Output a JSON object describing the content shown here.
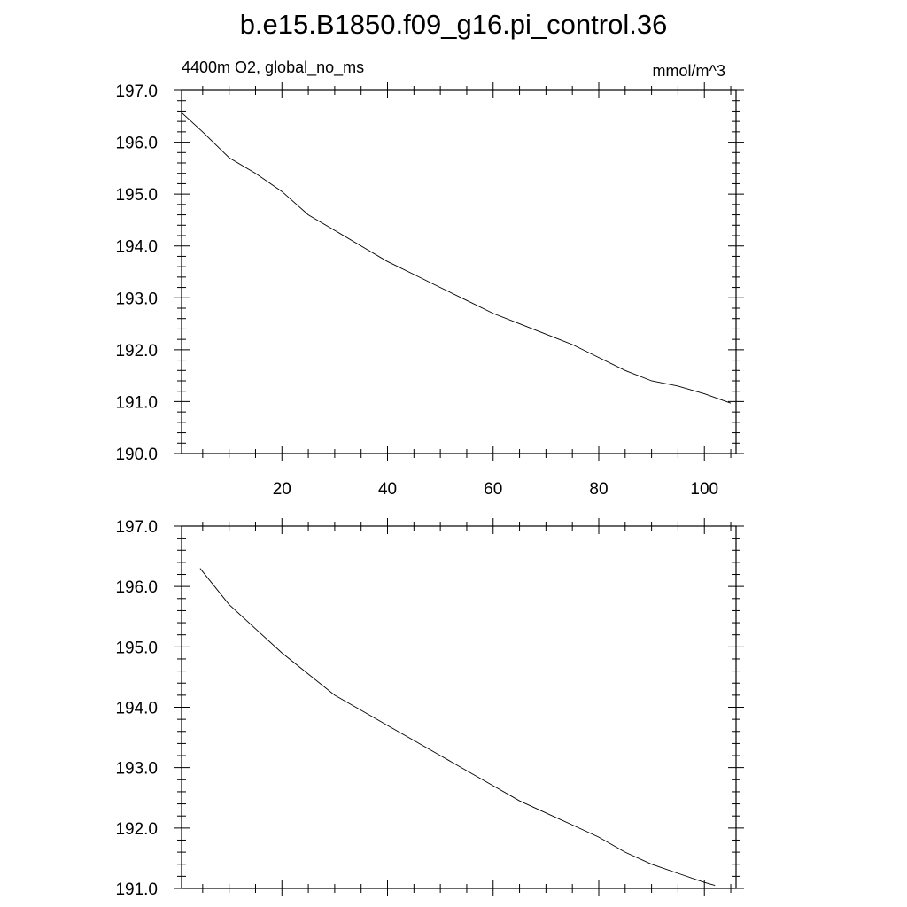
{
  "title": "b.e15.B1850.f09_g16.pi_control.36",
  "left_string": "4400m O2, global_no_ms",
  "right_string": "mmol/m^3",
  "chart_data": [
    {
      "type": "line",
      "title": "",
      "left_label": "4400m O2, global_no_ms",
      "right_label": "mmol/m^3",
      "xlim": [
        1,
        106
      ],
      "ylim": [
        190.0,
        197.0
      ],
      "x_ticks": [
        20,
        40,
        60,
        80,
        100
      ],
      "x_tick_labels": [
        "20",
        "40",
        "60",
        "80",
        "100"
      ],
      "y_ticks": [
        190.0,
        191.0,
        192.0,
        193.0,
        194.0,
        195.0,
        196.0,
        197.0
      ],
      "y_tick_labels": [
        "190.0",
        "191.0",
        "192.0",
        "193.0",
        "194.0",
        "195.0",
        "196.0",
        "197.0"
      ],
      "grid": false,
      "series": [
        {
          "x": [
            1,
            5,
            10,
            15,
            20,
            25,
            30,
            35,
            40,
            45,
            50,
            55,
            60,
            65,
            70,
            75,
            80,
            85,
            90,
            95,
            100,
            105
          ],
          "values": [
            196.57,
            196.2,
            195.7,
            195.4,
            195.05,
            194.6,
            194.3,
            194.0,
            193.7,
            193.45,
            193.2,
            192.95,
            192.7,
            192.5,
            192.3,
            192.1,
            191.85,
            191.6,
            191.4,
            191.3,
            191.15,
            190.97
          ]
        }
      ]
    },
    {
      "type": "line",
      "title": "",
      "xlim": [
        1,
        106
      ],
      "ylim": [
        191.0,
        197.0
      ],
      "x_ticks": [
        20,
        40,
        60,
        80,
        100
      ],
      "x_tick_labels": [],
      "y_ticks": [
        191.0,
        192.0,
        193.0,
        194.0,
        195.0,
        196.0,
        197.0
      ],
      "y_tick_labels": [
        "191.0",
        "192.0",
        "193.0",
        "194.0",
        "195.0",
        "196.0",
        "197.0"
      ],
      "grid": false,
      "series": [
        {
          "x": [
            4.5,
            10,
            15,
            20,
            25,
            30,
            35,
            40,
            45,
            50,
            55,
            60,
            65,
            70,
            75,
            80,
            85,
            90,
            95,
            100,
            102
          ],
          "values": [
            196.3,
            195.7,
            195.3,
            194.9,
            194.55,
            194.2,
            193.95,
            193.7,
            193.45,
            193.2,
            192.95,
            192.7,
            192.45,
            192.25,
            192.05,
            191.85,
            191.6,
            191.4,
            191.25,
            191.1,
            191.05
          ]
        }
      ]
    }
  ]
}
